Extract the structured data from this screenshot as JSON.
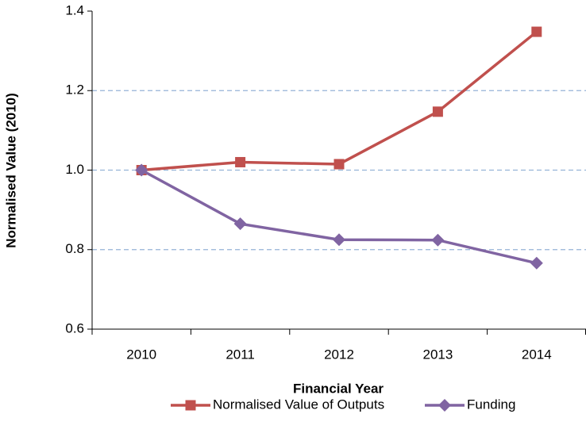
{
  "chart_data": {
    "type": "line",
    "x_label": "Financial Year",
    "y_label": "Normalised Value (2010)",
    "categories": [
      "2010",
      "2011",
      "2012",
      "2013",
      "2014"
    ],
    "series": [
      {
        "name": "Normalised Value of Outputs",
        "color": "#c0504d",
        "marker": "square",
        "values": [
          1.0,
          1.02,
          1.015,
          1.147,
          1.348
        ]
      },
      {
        "name": "Funding",
        "color": "#8064a2",
        "marker": "diamond",
        "values": [
          1.0,
          0.865,
          0.825,
          0.824,
          0.766
        ]
      }
    ],
    "ylim": [
      0.6,
      1.4
    ],
    "yticks": [
      0.6,
      0.8,
      {
        "value": 1,
        "label": "1.0"
      },
      1.2,
      1.4
    ],
    "grid": true,
    "legend": "bottom"
  }
}
